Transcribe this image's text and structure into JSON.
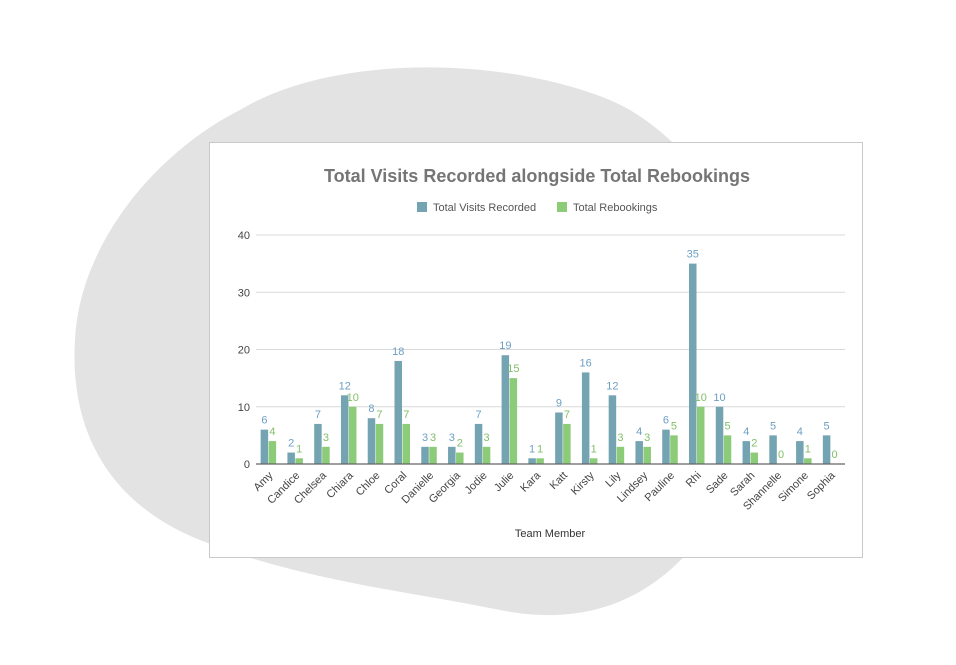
{
  "colors": {
    "series1": "#74a3b2",
    "series2": "#8ccb78",
    "label1": "#6c9fc4",
    "label2": "#82c06a",
    "grid": "#d9d9d9",
    "baseline": "#666666",
    "blob": "#e3e3e3"
  },
  "chart_data": {
    "type": "bar",
    "title": "Total Visits Recorded alongside Total Rebookings",
    "xlabel": "Team Member",
    "ylabel": "",
    "ylim": [
      0,
      40
    ],
    "yticks": [
      0,
      10,
      20,
      30,
      40
    ],
    "grid": true,
    "legend_position": "top",
    "categories": [
      "Amy",
      "Candice",
      "Chelsea",
      "Chiara",
      "Chloe",
      "Coral",
      "Danielle",
      "Georgia",
      "Jodie",
      "Julie",
      "Kara",
      "Katt",
      "Kirsty",
      "Lily",
      "Lindsey",
      "Pauline",
      "Rhi",
      "Sade",
      "Sarah",
      "Shannelle",
      "Simone",
      "Sophia"
    ],
    "series": [
      {
        "name": "Total Visits Recorded",
        "values": [
          6,
          2,
          7,
          12,
          8,
          18,
          3,
          3,
          7,
          19,
          1,
          9,
          16,
          12,
          4,
          6,
          35,
          10,
          4,
          5,
          4,
          5
        ]
      },
      {
        "name": "Total Rebookings",
        "values": [
          4,
          1,
          3,
          10,
          7,
          7,
          3,
          2,
          3,
          15,
          1,
          7,
          1,
          3,
          3,
          5,
          10,
          5,
          2,
          0,
          1,
          0
        ]
      }
    ]
  }
}
